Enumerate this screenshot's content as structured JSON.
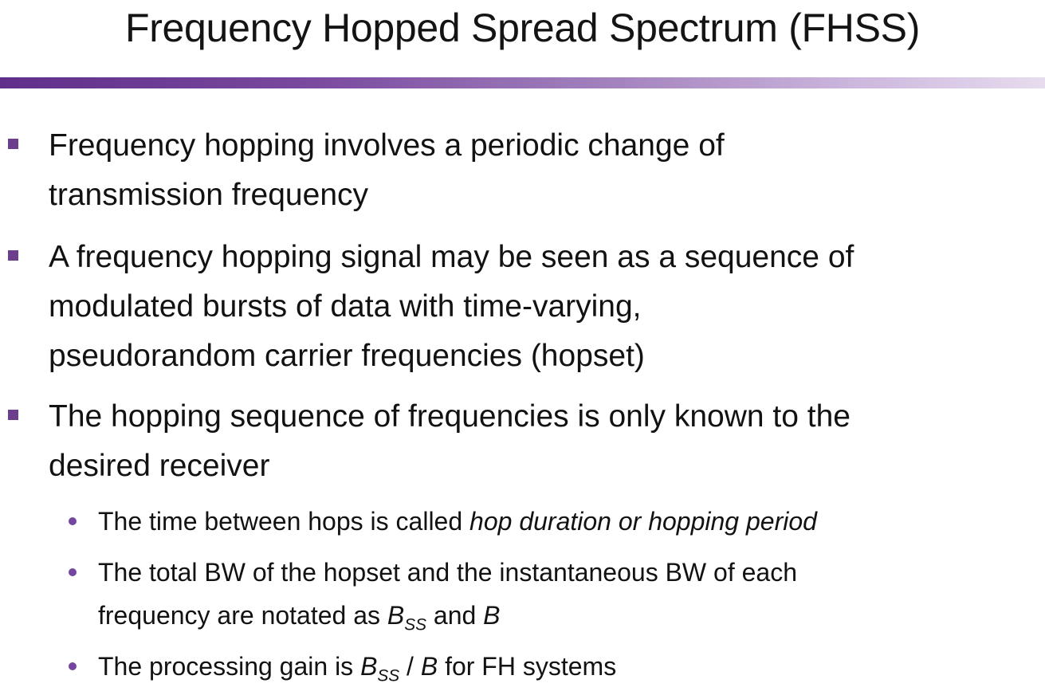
{
  "slide": {
    "title": "Frequency Hopped Spread Spectrum (FHSS)",
    "bullets": [
      {
        "lines": [
          "Frequency hopping involves a periodic change of",
          "transmission frequency"
        ]
      },
      {
        "lines": [
          "A frequency hopping signal may be seen as a sequence of",
          "modulated bursts of data with time-varying,",
          "pseudorandom carrier frequencies (hopset)"
        ]
      },
      {
        "lines": [
          "The hopping sequence of frequencies is only known to the",
          "desired receiver"
        ],
        "sub_bullets": [
          {
            "text_prefix": "The time between hops is called ",
            "text_italic": "hop duration or hopping period"
          },
          {
            "line1": "The total BW of the hopset and the instantaneous BW of each",
            "line2_prefix": "frequency are notated as ",
            "symbol_bss_main": "B",
            "symbol_bss_sub": "SS",
            "and_word": " and ",
            "symbol_b": "B"
          },
          {
            "text_prefix": "The processing gain is ",
            "symbol_bss_main": "B",
            "symbol_bss_sub": "SS",
            "slash": " / ",
            "symbol_b": "B",
            "text_suffix": " for FH systems"
          }
        ]
      }
    ]
  },
  "colors": {
    "bullet_square": "#6c3f8c",
    "bullet_dot": "#7446a0",
    "rule_gradient_start": "#5f2f8a",
    "rule_gradient_end": "#e7dcef"
  }
}
